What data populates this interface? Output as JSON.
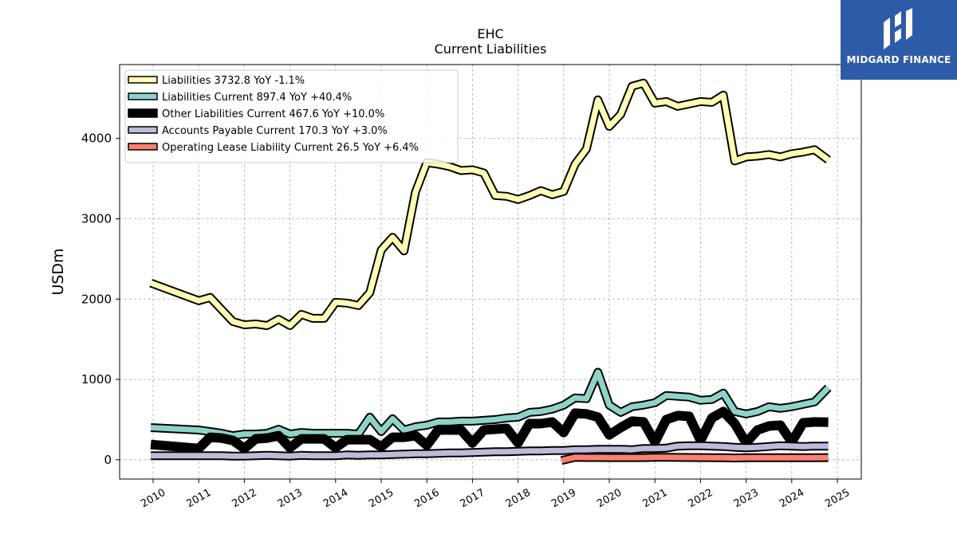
{
  "chart_data": {
    "type": "line",
    "title": "EHC",
    "subtitle": "Current  Liabilities",
    "ylabel": "USDm",
    "xlabel": "",
    "xlim": [
      2009.3,
      2025.5
    ],
    "ylim": [
      -240,
      4920
    ],
    "yticks": [
      0,
      1000,
      2000,
      3000,
      4000
    ],
    "xticks": [
      "2010",
      "2011",
      "2012",
      "2013",
      "2014",
      "2015",
      "2016",
      "2017",
      "2018",
      "2019",
      "2020",
      "2021",
      "2022",
      "2023",
      "2024",
      "2025"
    ],
    "grid": true,
    "legend_position": "top-left",
    "series": [
      {
        "name": "Liabilities",
        "legend": "Liabilities  3732.8 YoY -1.1%",
        "color": "#ffffb3",
        "width": 8,
        "x": [
          2009.95,
          2011.0,
          2011.25,
          2011.5,
          2011.75,
          2012.0,
          2012.25,
          2012.5,
          2012.75,
          2013.0,
          2013.25,
          2013.5,
          2013.75,
          2014.0,
          2014.25,
          2014.5,
          2014.75,
          2015.0,
          2015.25,
          2015.5,
          2015.75,
          2016.0,
          2016.25,
          2016.5,
          2016.75,
          2017.0,
          2017.25,
          2017.5,
          2017.75,
          2018.0,
          2018.25,
          2018.5,
          2018.75,
          2019.0,
          2019.25,
          2019.5,
          2019.75,
          2020.0,
          2020.25,
          2020.5,
          2020.75,
          2021.0,
          2021.25,
          2021.5,
          2021.75,
          2022.0,
          2022.25,
          2022.5,
          2022.75,
          2023.0,
          2023.25,
          2023.5,
          2023.75,
          2024.0,
          2024.25,
          2024.5,
          2024.8
        ],
        "y": [
          2200,
          1980,
          2020,
          1870,
          1720,
          1680,
          1690,
          1670,
          1750,
          1670,
          1810,
          1760,
          1760,
          1960,
          1950,
          1920,
          2080,
          2610,
          2770,
          2600,
          3330,
          3700,
          3680,
          3650,
          3600,
          3610,
          3570,
          3290,
          3280,
          3240,
          3290,
          3350,
          3300,
          3340,
          3680,
          3870,
          4480,
          4150,
          4300,
          4650,
          4690,
          4440,
          4460,
          4400,
          4430,
          4460,
          4450,
          4540,
          3720,
          3770,
          3780,
          3800,
          3770,
          3810,
          3830,
          3860,
          3732.8
        ]
      },
      {
        "name": "Liabilities Current",
        "legend": "Liabilities Current  897.4 YoY +40.4%",
        "color": "#8dd3c7",
        "width": 8,
        "x": [
          2009.95,
          2011.0,
          2011.25,
          2011.5,
          2011.75,
          2012.0,
          2012.25,
          2012.5,
          2012.75,
          2013.0,
          2013.25,
          2013.5,
          2013.75,
          2014.0,
          2014.25,
          2014.5,
          2014.75,
          2015.0,
          2015.25,
          2015.5,
          2015.75,
          2016.0,
          2016.25,
          2016.5,
          2016.75,
          2017.0,
          2017.25,
          2017.5,
          2017.75,
          2018.0,
          2018.25,
          2018.5,
          2018.75,
          2019.0,
          2019.25,
          2019.5,
          2019.75,
          2020.0,
          2020.25,
          2020.5,
          2020.75,
          2021.0,
          2021.25,
          2021.5,
          2021.75,
          2022.0,
          2022.25,
          2022.5,
          2022.75,
          2023.0,
          2023.25,
          2023.5,
          2023.75,
          2024.0,
          2024.25,
          2024.5,
          2024.8
        ],
        "y": [
          400,
          370,
          350,
          330,
          300,
          320,
          320,
          330,
          380,
          320,
          340,
          330,
          330,
          330,
          330,
          320,
          530,
          350,
          510,
          370,
          410,
          430,
          470,
          470,
          480,
          480,
          490,
          500,
          520,
          530,
          590,
          600,
          630,
          680,
          770,
          760,
          1090,
          680,
          590,
          660,
          680,
          710,
          800,
          790,
          780,
          740,
          750,
          830,
          600,
          570,
          600,
          660,
          640,
          660,
          690,
          720,
          897.4
        ]
      },
      {
        "name": "Other Liabilities Current",
        "legend": "Other Liabilities Current  467.6 YoY +10.0%",
        "color": "#000000",
        "width": 12,
        "x": [
          2009.95,
          2011.0,
          2011.25,
          2011.5,
          2011.75,
          2012.0,
          2012.25,
          2012.5,
          2012.75,
          2013.0,
          2013.25,
          2013.5,
          2013.75,
          2014.0,
          2014.25,
          2014.5,
          2014.75,
          2015.0,
          2015.25,
          2015.5,
          2015.75,
          2016.0,
          2016.25,
          2016.5,
          2016.75,
          2017.0,
          2017.25,
          2017.5,
          2017.75,
          2018.0,
          2018.25,
          2018.5,
          2018.75,
          2019.0,
          2019.25,
          2019.5,
          2019.75,
          2020.0,
          2020.25,
          2020.5,
          2020.75,
          2021.0,
          2021.25,
          2021.5,
          2021.75,
          2022.0,
          2022.25,
          2022.5,
          2022.75,
          2023.0,
          2023.25,
          2023.5,
          2023.75,
          2024.0,
          2024.25,
          2024.5,
          2024.8
        ],
        "y": [
          190,
          140,
          280,
          270,
          240,
          140,
          260,
          270,
          300,
          150,
          260,
          260,
          260,
          150,
          250,
          250,
          250,
          160,
          280,
          280,
          300,
          180,
          370,
          370,
          370,
          210,
          370,
          380,
          390,
          210,
          450,
          450,
          470,
          340,
          580,
          570,
          530,
          310,
          400,
          480,
          470,
          220,
          500,
          550,
          540,
          240,
          520,
          600,
          450,
          210,
          370,
          420,
          430,
          220,
          460,
          470,
          467.6
        ]
      },
      {
        "name": "Accounts Payable Current",
        "legend": "Accounts Payable Current  170.3 YoY +3.0%",
        "color": "#bebada",
        "width": 8,
        "x": [
          2009.95,
          2011.0,
          2011.25,
          2011.5,
          2011.75,
          2012.0,
          2012.25,
          2012.5,
          2012.75,
          2013.0,
          2013.25,
          2013.5,
          2013.75,
          2014.0,
          2014.25,
          2014.5,
          2014.75,
          2015.0,
          2015.25,
          2015.5,
          2015.75,
          2016.0,
          2016.25,
          2016.5,
          2016.75,
          2017.0,
          2017.25,
          2017.5,
          2017.75,
          2018.0,
          2018.25,
          2018.5,
          2018.75,
          2019.0,
          2019.25,
          2019.5,
          2019.75,
          2020.0,
          2020.25,
          2020.5,
          2020.75,
          2021.0,
          2021.25,
          2021.5,
          2021.75,
          2022.0,
          2022.25,
          2022.5,
          2022.75,
          2023.0,
          2023.25,
          2023.5,
          2023.75,
          2024.0,
          2024.25,
          2024.5,
          2024.8
        ],
        "y": [
          50,
          50,
          50,
          50,
          45,
          45,
          50,
          55,
          50,
          45,
          55,
          50,
          50,
          50,
          60,
          55,
          60,
          60,
          65,
          70,
          75,
          75,
          80,
          85,
          85,
          90,
          95,
          100,
          100,
          105,
          110,
          110,
          115,
          115,
          125,
          125,
          130,
          130,
          130,
          125,
          140,
          140,
          145,
          170,
          175,
          175,
          170,
          165,
          155,
          150,
          155,
          165,
          175,
          170,
          165,
          170,
          170.3
        ]
      },
      {
        "name": "Operating Lease Liability Current",
        "legend": "Operating Lease Liability Current  26.5 YoY +6.4%",
        "color": "#fb8072",
        "width": 8,
        "x": [
          2018.95,
          2019.25,
          2019.5,
          2019.75,
          2020.0,
          2020.25,
          2020.5,
          2020.75,
          2021.0,
          2021.25,
          2021.5,
          2021.75,
          2022.0,
          2022.25,
          2022.5,
          2022.75,
          2023.0,
          2023.25,
          2023.5,
          2023.75,
          2024.0,
          2024.25,
          2024.5,
          2024.8
        ],
        "y": [
          -10,
          30,
          28,
          28,
          27,
          27,
          27,
          27,
          30,
          30,
          29,
          28,
          27,
          26,
          25,
          22,
          25,
          25,
          25,
          25,
          25,
          25,
          26,
          26.5
        ]
      }
    ]
  },
  "logo": {
    "text": "MIDGARD FINANCE"
  }
}
